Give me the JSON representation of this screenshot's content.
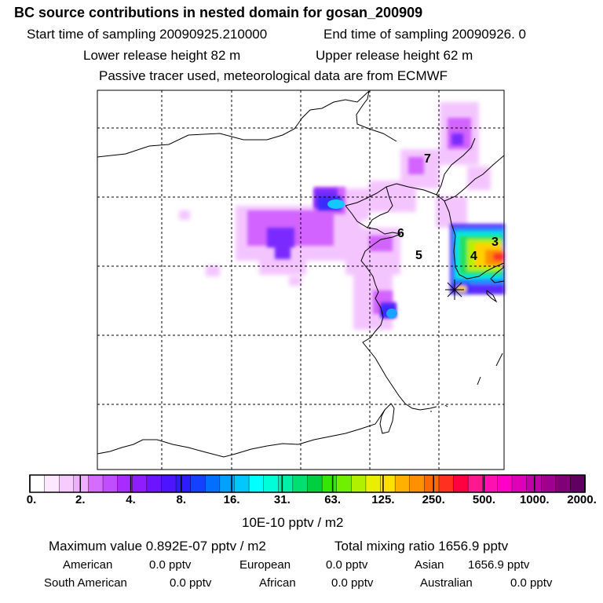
{
  "header": {
    "title": "BC  source contributions in nested domain for gosan_200909",
    "start_label": "Start time of sampling 20090925.210000",
    "end_label": "End time of sampling 20090926.     0",
    "lower_label": "Lower release height   82 m",
    "upper_label": "Upper release height   62 m",
    "tracer_note": "Passive tracer used, meteorological data are from ECMWF"
  },
  "map": {
    "region_labels": [
      "7",
      "6",
      "5",
      "4",
      "3"
    ],
    "grid": true,
    "colors": {
      "low": "#e066ff",
      "mid": "#4a1cff",
      "high": "#00ffff",
      "peak": "#ff8000"
    }
  },
  "colorbar": {
    "ticks": [
      "0.",
      "2.",
      "4.",
      "8.",
      "16.",
      "31.",
      "63.",
      "125.",
      "250.",
      "500.",
      "1000.",
      "2000."
    ],
    "colors": [
      "#ffffff",
      "#fde8ff",
      "#f6cbfe",
      "#eeb0fe",
      "#d66bff",
      "#c04eff",
      "#a82cff",
      "#8f1dff",
      "#6d14ff",
      "#4d14ff",
      "#2e1cff",
      "#1242ff",
      "#0070ff",
      "#00a0ff",
      "#00c8ff",
      "#00ffff",
      "#00ffd8",
      "#00f0a8",
      "#00e070",
      "#00d040",
      "#30e800",
      "#70f000",
      "#b0f000",
      "#e8f000",
      "#ffe000",
      "#ffb000",
      "#ff9000",
      "#ff6a00",
      "#ff3020",
      "#ff0040",
      "#ff1890",
      "#ff10b0",
      "#ff00c8",
      "#e000b8",
      "#c000a8",
      "#a00090",
      "#800078",
      "#600060"
    ],
    "unit": "10E-10 pptv / m2"
  },
  "summary": {
    "max_value": "Maximum value  0.892E-07 pptv / m2",
    "total": "Total mixing ratio     1656.9 pptv",
    "regions": [
      {
        "name": "American",
        "value": "0.0 pptv"
      },
      {
        "name": "European",
        "value": "0.0 pptv"
      },
      {
        "name": "Asian",
        "value": "1656.9 pptv"
      },
      {
        "name": "South American",
        "value": "0.0 pptv"
      },
      {
        "name": "African",
        "value": "0.0 pptv"
      },
      {
        "name": "Australian",
        "value": "0.0 pptv"
      }
    ]
  }
}
